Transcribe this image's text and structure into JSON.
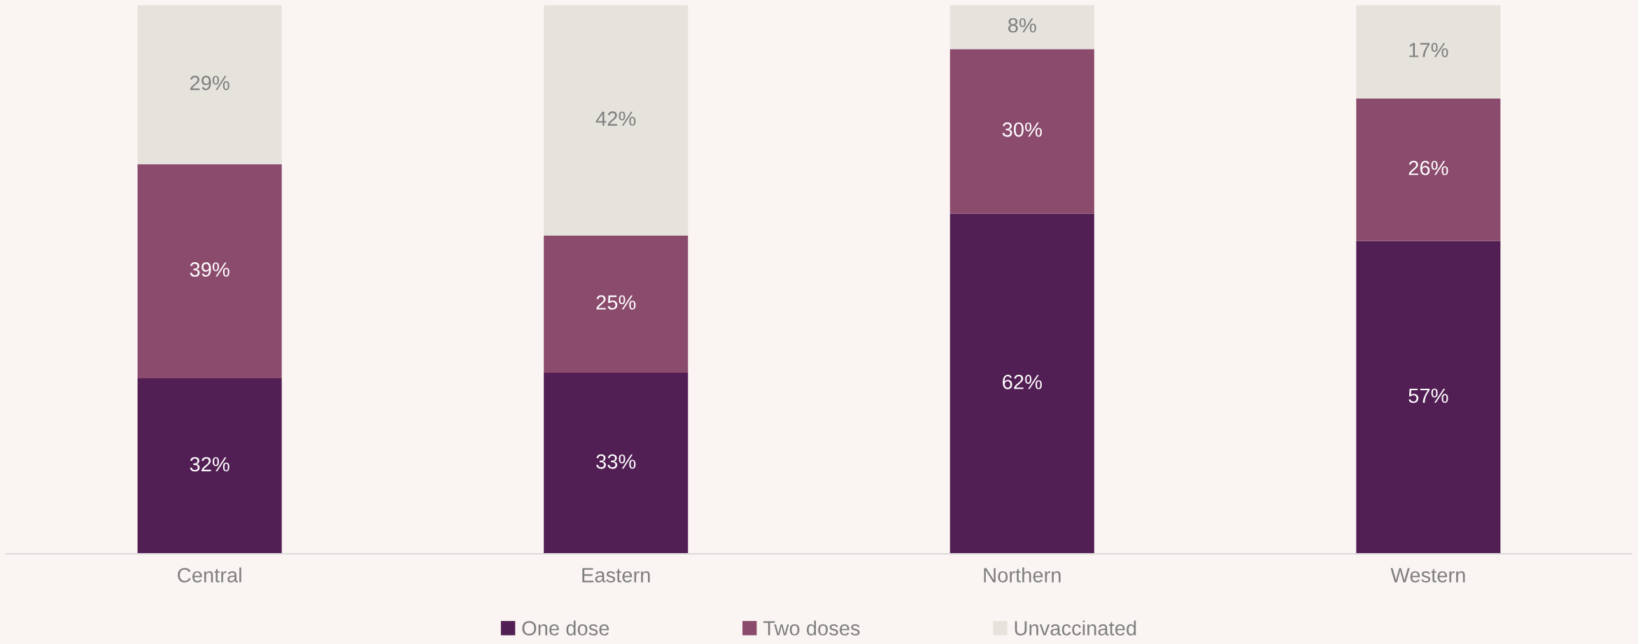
{
  "chart_data": {
    "type": "bar",
    "stacked": true,
    "categories": [
      "Central",
      "Eastern",
      "Northern",
      "Western"
    ],
    "series": [
      {
        "name": "One dose",
        "color": "#521f55",
        "values": [
          32,
          33,
          62,
          57
        ],
        "value_labels": [
          "32%",
          "33%",
          "62%",
          "57%"
        ]
      },
      {
        "name": "Two doses",
        "color": "#8b4b6d",
        "values": [
          39,
          25,
          30,
          26
        ],
        "value_labels": [
          "39%",
          "25%",
          "30%",
          "26%"
        ]
      },
      {
        "name": "Unvaccinated",
        "color": "#e6e3dd",
        "values": [
          29,
          42,
          8,
          17
        ],
        "value_labels": [
          "29%",
          "42%",
          "8%",
          "17%"
        ]
      }
    ],
    "grid": false,
    "legend": "bottom"
  }
}
